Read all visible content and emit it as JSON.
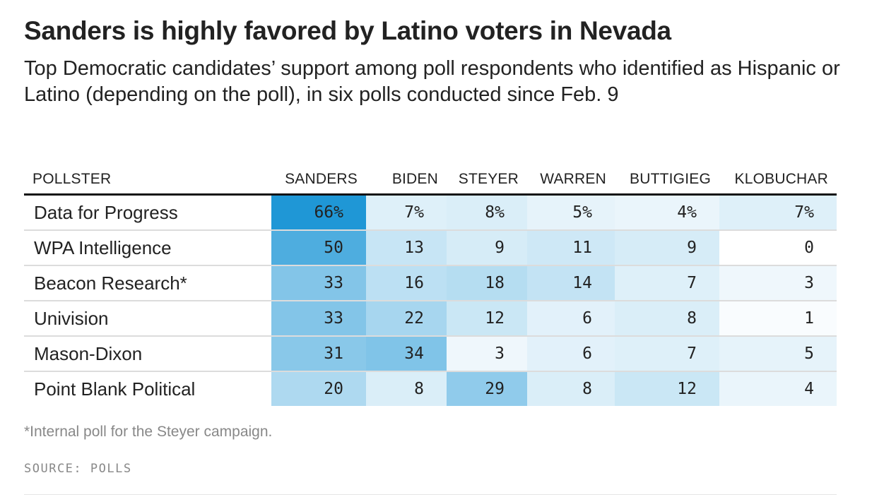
{
  "title": "Sanders is highly favored by Latino voters in Nevada",
  "subtitle": "Top Democratic candidates’ support among poll respondents who identified as Hispanic or Latino (depending on the poll), in six polls conducted since Feb. 9",
  "footnote": "*Internal poll for the Steyer campaign.",
  "source": "SOURCE: POLLS",
  "colors": {
    "scale_low": "#ffffff",
    "scale_high": "#1f97d6"
  },
  "chart_data": {
    "type": "table",
    "columns": [
      "POLLSTER",
      "SANDERS",
      "BIDEN",
      "STEYER",
      "WARREN",
      "BUTTIGIEG",
      "KLOBUCHAR"
    ],
    "rows": [
      {
        "pollster": "Data for Progress",
        "values": [
          66,
          7,
          8,
          5,
          4,
          7
        ],
        "labels": [
          "66%",
          "7%",
          "8%",
          "5%",
          "4%",
          "7%"
        ]
      },
      {
        "pollster": "WPA Intelligence",
        "values": [
          50,
          13,
          9,
          11,
          9,
          0
        ],
        "labels": [
          "50",
          "13",
          "9",
          "11",
          "9",
          "0"
        ]
      },
      {
        "pollster": "Beacon Research*",
        "values": [
          33,
          16,
          18,
          14,
          7,
          3
        ],
        "labels": [
          "33",
          "16",
          "18",
          "14",
          "7",
          "3"
        ]
      },
      {
        "pollster": "Univision",
        "values": [
          33,
          22,
          12,
          6,
          8,
          1
        ],
        "labels": [
          "33",
          "22",
          "12",
          "6",
          "8",
          "1"
        ]
      },
      {
        "pollster": "Mason-Dixon",
        "values": [
          31,
          34,
          3,
          6,
          7,
          5
        ],
        "labels": [
          "31",
          "34",
          "3",
          "6",
          "7",
          "5"
        ]
      },
      {
        "pollster": "Point Blank Political",
        "values": [
          20,
          8,
          29,
          8,
          12,
          4
        ],
        "labels": [
          "20",
          "8",
          "29",
          "8",
          "12",
          "4"
        ]
      }
    ]
  }
}
